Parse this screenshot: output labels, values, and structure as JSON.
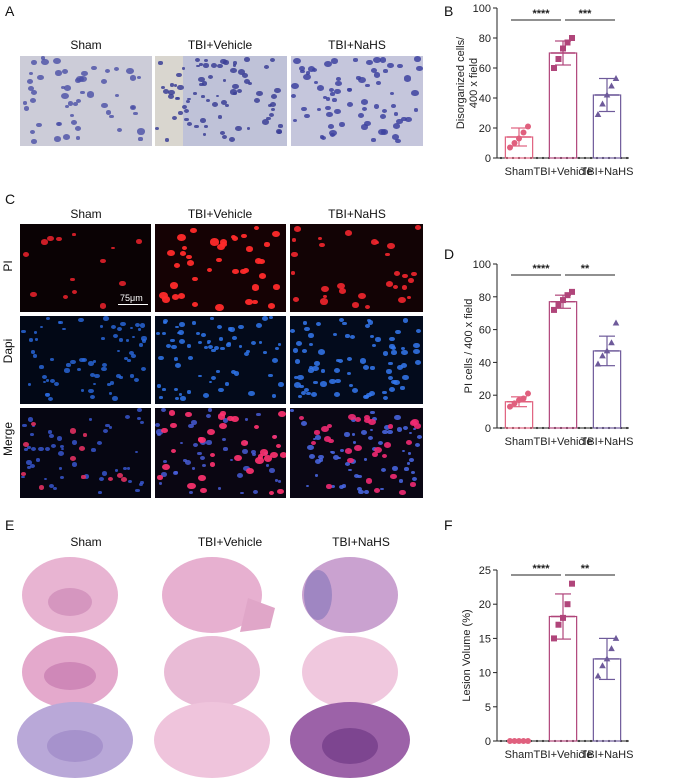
{
  "panels": {
    "a": {
      "letter": "A",
      "labels": [
        "Sham",
        "TBI+Vehicle",
        "TBI+NaHS"
      ]
    },
    "b": {
      "letter": "B"
    },
    "c": {
      "letter": "C",
      "labels": [
        "Sham",
        "TBI+Vehicle",
        "TBI+NaHS"
      ],
      "rows": [
        "PI",
        "Dapi",
        "Merge"
      ],
      "scale_text": "75μm"
    },
    "d": {
      "letter": "D"
    },
    "e": {
      "letter": "E",
      "labels": [
        "Sham",
        "TBI+Vehicle",
        "TBI+NaHS"
      ]
    },
    "f": {
      "letter": "F"
    }
  },
  "colors": {
    "sham": "#e0607e",
    "vehicle": "#b0457a",
    "nahs": "#6e5a9a"
  },
  "chart_data": [
    {
      "type": "bar",
      "ylabel_lines": [
        "Disorganized  cells/",
        "400 x field"
      ],
      "ylim": [
        0,
        100
      ],
      "yticks": [
        0,
        20,
        40,
        60,
        80,
        100
      ],
      "categories": [
        "Sham",
        "TBI+Vehicle",
        "TBI+NaHS"
      ],
      "means": [
        14,
        70,
        42
      ],
      "sd": [
        6,
        8,
        11
      ],
      "points": [
        [
          7,
          10,
          13,
          17,
          21
        ],
        [
          60,
          66,
          73,
          77,
          80
        ],
        [
          29,
          36,
          42,
          48,
          53
        ]
      ],
      "significance": [
        {
          "from": 0,
          "to": 1,
          "label": "****"
        },
        {
          "from": 1,
          "to": 2,
          "label": "***"
        }
      ]
    },
    {
      "type": "bar",
      "ylabel_lines": [
        "PI cells / 400 x field"
      ],
      "ylim": [
        0,
        100
      ],
      "yticks": [
        0,
        20,
        40,
        60,
        80,
        100
      ],
      "categories": [
        "Sham",
        "TBI+Vehicle",
        "TBI+NaHS"
      ],
      "means": [
        16,
        77,
        47
      ],
      "sd": [
        3,
        4,
        9
      ],
      "points": [
        [
          13,
          15,
          17,
          18,
          21
        ],
        [
          72,
          75,
          78,
          81,
          83
        ],
        [
          39,
          44,
          47,
          52,
          64
        ]
      ],
      "significance": [
        {
          "from": 0,
          "to": 1,
          "label": "****"
        },
        {
          "from": 1,
          "to": 2,
          "label": "**"
        }
      ]
    },
    {
      "type": "bar",
      "ylabel_lines": [
        "Lesion Volume (%)"
      ],
      "ylim": [
        0,
        25
      ],
      "yticks": [
        0,
        5,
        10,
        15,
        20,
        25
      ],
      "categories": [
        "Sham",
        "TBI+Vehicle",
        "TBI+NaHS"
      ],
      "means": [
        0,
        18.2,
        12
      ],
      "sd": [
        0,
        3.3,
        3.0
      ],
      "points": [
        [
          0,
          0,
          0,
          0,
          0
        ],
        [
          15,
          17,
          18,
          20,
          23
        ],
        [
          9.5,
          11,
          12,
          13.5,
          15
        ]
      ],
      "significance": [
        {
          "from": 0,
          "to": 1,
          "label": "****"
        },
        {
          "from": 1,
          "to": 2,
          "label": "**"
        }
      ]
    }
  ]
}
